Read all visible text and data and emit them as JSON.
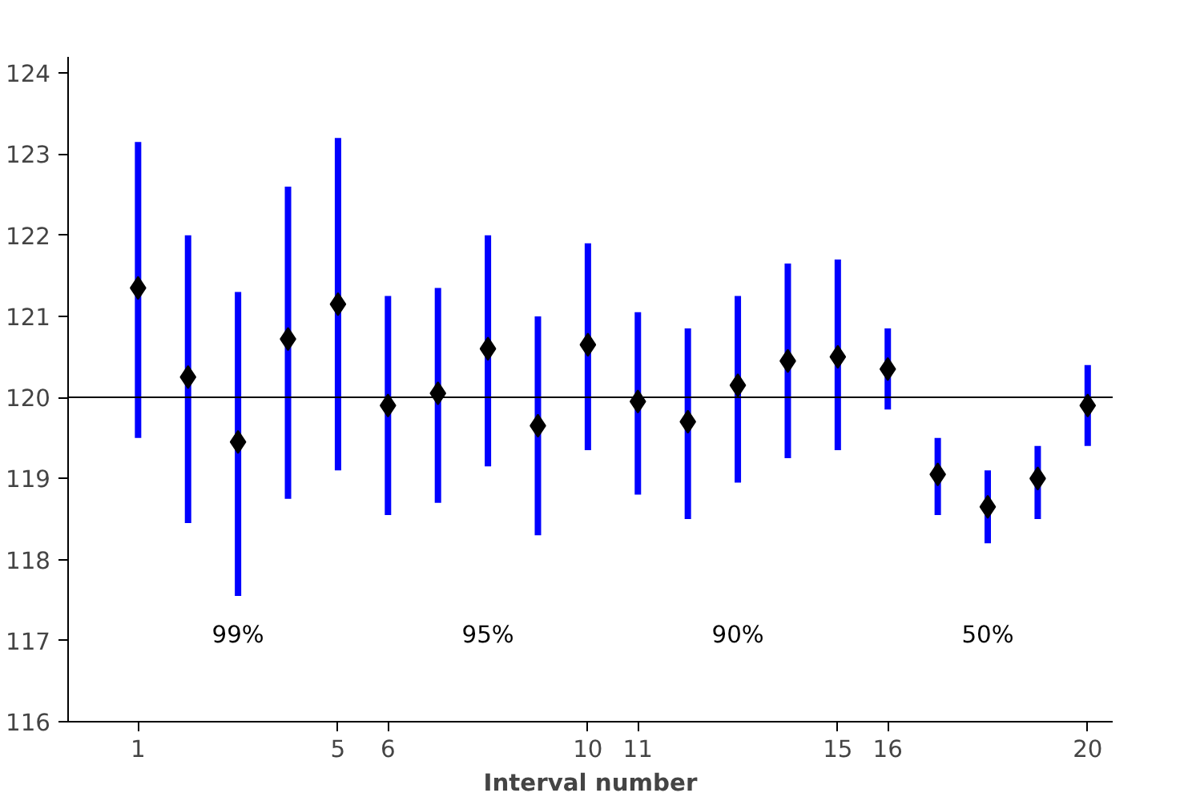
{
  "chart_data": {
    "type": "scatter",
    "xlabel": "Interval number",
    "x": [
      1,
      2,
      3,
      4,
      5,
      6,
      7,
      8,
      9,
      10,
      11,
      12,
      13,
      14,
      15,
      16,
      17,
      18,
      19,
      20
    ],
    "series": [
      {
        "color": "#0000ff",
        "values": [
          121.35,
          120.25,
          119.45,
          120.72,
          121.15,
          119.9,
          120.05,
          120.6,
          119.65,
          120.65,
          119.95,
          119.7,
          120.15,
          120.45,
          120.5,
          120.35,
          119.05,
          118.65,
          119.0,
          119.9
        ],
        "errors": [
          [
            119.5,
            123.15
          ],
          [
            118.45,
            122.0
          ],
          [
            117.55,
            121.3
          ],
          [
            118.75,
            122.6
          ],
          [
            119.1,
            123.2
          ],
          [
            118.55,
            121.25
          ],
          [
            118.7,
            121.35
          ],
          [
            119.15,
            122.0
          ],
          [
            118.3,
            121.0
          ],
          [
            119.35,
            121.9
          ],
          [
            118.8,
            121.05
          ],
          [
            118.5,
            120.85
          ],
          [
            118.95,
            121.25
          ],
          [
            119.25,
            121.65
          ],
          [
            119.35,
            121.7
          ],
          [
            119.85,
            120.85
          ],
          [
            118.55,
            119.5
          ],
          [
            118.2,
            119.1
          ],
          [
            118.5,
            119.4
          ],
          [
            119.4,
            120.4
          ]
        ],
        "colors": [
          "#000000",
          "#000000",
          "#000000",
          "#000000",
          "#000000",
          "#000000",
          "#000000",
          "#000000",
          "#000000",
          "#000000",
          "#000000",
          "#000000",
          "#000000",
          "#000000",
          "#000000",
          "#000000",
          "#000000",
          "#000000",
          "#000000",
          "#000000"
        ]
      }
    ],
    "marker": "diamond",
    "xlim": [
      -0.4,
      20.5
    ],
    "xticks": [
      1,
      5,
      6,
      10,
      11,
      15,
      16,
      20
    ],
    "ylim": [
      116,
      124.2
    ],
    "yticks": [
      116,
      117,
      118,
      119,
      120,
      121,
      122,
      123,
      124
    ],
    "ref_lines": [
      {
        "axis": "y",
        "value": 120,
        "color": "#000000"
      }
    ],
    "annotations": [
      "99%",
      "95%",
      "90%",
      "50%"
    ],
    "grid": false
  }
}
